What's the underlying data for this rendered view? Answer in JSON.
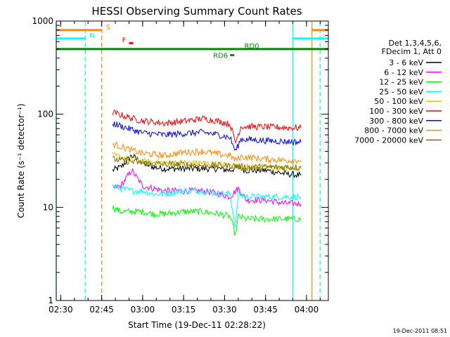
{
  "chart_data": {
    "type": "line",
    "title": "HESSI Observing Summary Count Rates",
    "xlabel": "Start Time (19-Dec-11 02:28:22)",
    "ylabel": "Count Rate (s⁻¹ detector⁻¹)",
    "yscale": "log",
    "ylim": [
      1,
      1000
    ],
    "xlim": [
      "02:28:22",
      "04:08:00"
    ],
    "x_ticks": [
      "02:30",
      "02:45",
      "03:00",
      "03:15",
      "03:30",
      "03:45",
      "04:00"
    ],
    "y_ticks": [
      "1",
      "10",
      "100",
      "1000"
    ],
    "timestamp": "19-Dec-2011 08:51",
    "legend": {
      "placement": "right",
      "header": [
        "Det 1,3,4,5,6,",
        "FDecim 1, Att 0"
      ]
    },
    "series": [
      {
        "name": "3 - 6 keV",
        "color": "#000000",
        "x": [
          "02:49",
          "02:52",
          "02:56",
          "03:00",
          "03:04",
          "03:08",
          "03:15",
          "03:22",
          "03:28",
          "03:32",
          "03:35",
          "03:38",
          "03:45",
          "03:52",
          "03:58"
        ],
        "y": [
          25,
          27,
          36,
          30,
          27,
          26,
          26,
          26,
          26,
          25,
          27,
          25,
          25,
          23,
          22
        ]
      },
      {
        "name": "6 - 12 keV",
        "color": "#ff00ff",
        "x": [
          "02:49",
          "02:52",
          "02:56",
          "03:00",
          "03:04",
          "03:08",
          "03:15",
          "03:22",
          "03:28",
          "03:32",
          "03:35",
          "03:38",
          "03:45",
          "03:52",
          "03:58"
        ],
        "y": [
          16,
          17,
          25,
          17,
          16,
          15,
          15,
          15,
          14,
          13,
          16,
          12,
          12,
          11,
          11
        ]
      },
      {
        "name": "12 - 25 keV",
        "color": "#00ff00",
        "x": [
          "02:49",
          "02:52",
          "02:56",
          "03:00",
          "03:04",
          "03:08",
          "03:15",
          "03:22",
          "03:28",
          "03:32",
          "03:34",
          "03:35",
          "03:38",
          "03:45",
          "03:52",
          "03:58"
        ],
        "y": [
          10,
          9,
          9,
          9,
          8.5,
          8.5,
          9,
          9,
          8.5,
          8,
          5,
          8,
          7.5,
          7.5,
          7.5,
          7.5
        ]
      },
      {
        "name": "25 - 50 keV",
        "color": "#00ffff",
        "x": [
          "02:49",
          "02:52",
          "02:56",
          "03:00",
          "03:04",
          "03:08",
          "03:15",
          "03:22",
          "03:28",
          "03:32",
          "03:34",
          "03:35",
          "03:38",
          "03:45",
          "03:52",
          "03:58"
        ],
        "y": [
          17,
          16,
          15,
          15,
          14,
          14,
          15,
          15,
          14,
          14,
          6,
          14,
          13,
          13,
          13,
          13
        ]
      },
      {
        "name": "50 - 100 keV",
        "color": "#cccc00",
        "x": [
          "02:49",
          "02:55",
          "03:00",
          "03:08",
          "03:15",
          "03:22",
          "03:28",
          "03:33",
          "03:38",
          "03:45",
          "03:52",
          "03:58"
        ],
        "y": [
          36,
          33,
          31,
          30,
          30,
          30,
          29,
          28,
          27,
          27,
          26,
          26
        ]
      },
      {
        "name": "100 - 300 keV",
        "color": "#ff0000",
        "x": [
          "02:49",
          "02:55",
          "03:00",
          "03:08",
          "03:15",
          "03:22",
          "03:28",
          "03:32",
          "03:34",
          "03:36",
          "03:45",
          "03:52",
          "03:58"
        ],
        "y": [
          105,
          92,
          85,
          80,
          84,
          90,
          84,
          78,
          50,
          74,
          73,
          72,
          71
        ]
      },
      {
        "name": "300 - 800 keV",
        "color": "#0000ff",
        "x": [
          "02:49",
          "02:55",
          "03:00",
          "03:08",
          "03:15",
          "03:22",
          "03:28",
          "03:32",
          "03:34",
          "03:36",
          "03:45",
          "03:52",
          "03:58"
        ],
        "y": [
          80,
          70,
          63,
          60,
          62,
          64,
          60,
          56,
          40,
          54,
          52,
          51,
          50
        ]
      },
      {
        "name": "800 - 7000 keV",
        "color": "#ff8800",
        "x": [
          "02:49",
          "02:55",
          "03:00",
          "03:08",
          "03:15",
          "03:22",
          "03:28",
          "03:32",
          "03:34",
          "03:36",
          "03:45",
          "03:52",
          "03:58"
        ],
        "y": [
          48,
          42,
          38,
          36,
          39,
          40,
          37,
          36,
          32,
          35,
          33,
          32,
          32
        ]
      },
      {
        "name": "7000 - 20000 keV",
        "color": "#886600",
        "x": [
          "02:49",
          "02:55",
          "03:00",
          "03:08",
          "03:15",
          "03:22",
          "03:28",
          "03:33",
          "03:38",
          "03:45",
          "03:52",
          "03:58"
        ],
        "y": [
          33,
          31,
          30,
          29,
          29,
          28,
          28,
          28,
          27,
          27,
          27,
          27
        ]
      }
    ],
    "flags": [
      {
        "label": "S",
        "color": "#ff8800",
        "level": 800,
        "from": "02:28:22",
        "to": "02:45"
      },
      {
        "label": "N",
        "color": "#00ffff",
        "level": 650,
        "from": "02:28:22",
        "to": "02:39"
      },
      {
        "label": "F",
        "color": "#ff0000",
        "level": 580,
        "from": "02:55",
        "to": "02:56"
      },
      {
        "label": "RD0",
        "color": "#008800",
        "level": 500,
        "from": "02:28:22",
        "to": "04:08:00"
      },
      {
        "label": "RD6",
        "color": "#008800",
        "level": 430,
        "from": "03:32",
        "to": "03:33"
      }
    ],
    "vertical_lines": [
      {
        "time": "02:28:22",
        "color": "#00ffff",
        "style": "solid"
      },
      {
        "time": "02:39",
        "color": "#00ffff",
        "style": "dashed"
      },
      {
        "time": "02:45",
        "color": "#ff8800",
        "style": "dashed"
      },
      {
        "time": "03:55",
        "color": "#00ffff",
        "style": "solid"
      },
      {
        "time": "04:02",
        "color": "#ff8800",
        "style": "solid"
      },
      {
        "time": "04:05",
        "color": "#00ffff",
        "style": "dashed"
      }
    ]
  }
}
